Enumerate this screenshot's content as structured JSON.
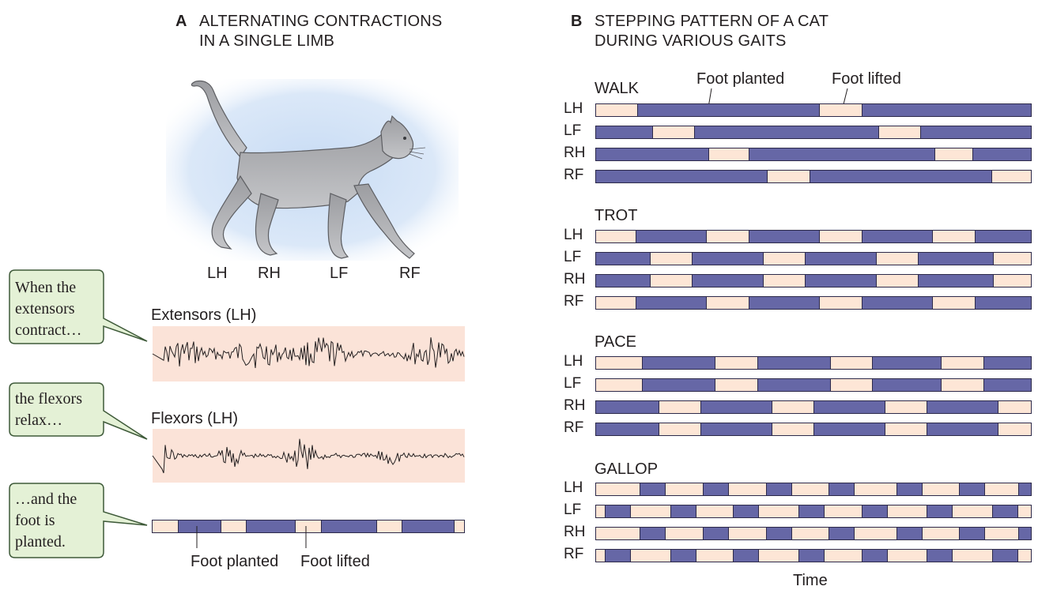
{
  "colors": {
    "planted": "#6667a6",
    "lifted": "#fde6d6",
    "emg_bg": "#fbe3d8",
    "callout_bg": "#e4f1d6",
    "callout_border": "#3e5a39",
    "cat_fur": "#a9aaae",
    "halo": "#cfe0f5"
  },
  "panelA": {
    "letter": "A",
    "title_line1": "ALTERNATING CONTRACTIONS",
    "title_line2": "IN A SINGLE LIMB",
    "limb_labels": [
      "LH",
      "RH",
      "LF",
      "RF"
    ],
    "extensors_label": "Extensors (LH)",
    "flexors_label": "Flexors (LH)",
    "planted_label": "Foot planted",
    "lifted_label": "Foot lifted",
    "step_bar": [
      {
        "state": "lifted",
        "from": 0.0,
        "to": 0.08
      },
      {
        "state": "planted",
        "from": 0.08,
        "to": 0.22
      },
      {
        "state": "lifted",
        "from": 0.22,
        "to": 0.3
      },
      {
        "state": "planted",
        "from": 0.3,
        "to": 0.46
      },
      {
        "state": "lifted",
        "from": 0.46,
        "to": 0.54
      },
      {
        "state": "planted",
        "from": 0.54,
        "to": 0.72
      },
      {
        "state": "lifted",
        "from": 0.72,
        "to": 0.8
      },
      {
        "state": "planted",
        "from": 0.8,
        "to": 0.97
      },
      {
        "state": "lifted",
        "from": 0.97,
        "to": 1.0
      }
    ]
  },
  "callouts": [
    {
      "lines": [
        "When the",
        "extensors",
        "contract…"
      ]
    },
    {
      "lines": [
        "the flexors",
        "relax…"
      ]
    },
    {
      "lines": [
        "…and the",
        "foot is",
        "planted."
      ]
    }
  ],
  "panelB": {
    "letter": "B",
    "title_line1": "STEPPING PATTERN OF A CAT",
    "title_line2": "DURING VARIOUS GAITS",
    "planted_label": "Foot planted",
    "lifted_label": "Foot lifted",
    "time_label": "Time",
    "gaits": [
      {
        "name": "WALK",
        "rows": [
          {
            "limb": "LH",
            "planted": [
              [
                0.095,
                0.515
              ],
              [
                0.61,
                1.0
              ]
            ]
          },
          {
            "limb": "LF",
            "planted": [
              [
                0.0,
                0.13
              ],
              [
                0.225,
                0.65
              ],
              [
                0.745,
                1.0
              ]
            ]
          },
          {
            "limb": "RH",
            "planted": [
              [
                0.0,
                0.26
              ],
              [
                0.35,
                0.78
              ],
              [
                0.865,
                1.0
              ]
            ]
          },
          {
            "limb": "RF",
            "planted": [
              [
                0.0,
                0.395
              ],
              [
                0.49,
                0.91
              ]
            ]
          }
        ]
      },
      {
        "name": "TROT",
        "rows": [
          {
            "limb": "LH",
            "planted": [
              [
                0.09,
                0.255
              ],
              [
                0.35,
                0.515
              ],
              [
                0.61,
                0.775
              ],
              [
                0.87,
                1.0
              ]
            ]
          },
          {
            "limb": "LF",
            "planted": [
              [
                0.0,
                0.125
              ],
              [
                0.22,
                0.385
              ],
              [
                0.48,
                0.645
              ],
              [
                0.74,
                0.915
              ]
            ]
          },
          {
            "limb": "RH",
            "planted": [
              [
                0.0,
                0.125
              ],
              [
                0.22,
                0.385
              ],
              [
                0.48,
                0.645
              ],
              [
                0.74,
                0.915
              ]
            ]
          },
          {
            "limb": "RF",
            "planted": [
              [
                0.09,
                0.255
              ],
              [
                0.35,
                0.515
              ],
              [
                0.61,
                0.775
              ],
              [
                0.87,
                1.0
              ]
            ]
          }
        ]
      },
      {
        "name": "PACE",
        "rows": [
          {
            "limb": "LH",
            "planted": [
              [
                0.105,
                0.275
              ],
              [
                0.37,
                0.54
              ],
              [
                0.635,
                0.795
              ],
              [
                0.89,
                1.0
              ]
            ]
          },
          {
            "limb": "LF",
            "planted": [
              [
                0.105,
                0.275
              ],
              [
                0.37,
                0.54
              ],
              [
                0.635,
                0.795
              ],
              [
                0.89,
                1.0
              ]
            ]
          },
          {
            "limb": "RH",
            "planted": [
              [
                0.0,
                0.145
              ],
              [
                0.24,
                0.405
              ],
              [
                0.5,
                0.665
              ],
              [
                0.76,
                0.925
              ]
            ]
          },
          {
            "limb": "RF",
            "planted": [
              [
                0.0,
                0.145
              ],
              [
                0.24,
                0.405
              ],
              [
                0.5,
                0.665
              ],
              [
                0.76,
                0.925
              ]
            ]
          }
        ]
      },
      {
        "name": "GALLOP",
        "rows": [
          {
            "limb": "LH",
            "planted": [
              [
                0.1,
                0.16
              ],
              [
                0.245,
                0.305
              ],
              [
                0.39,
                0.45
              ],
              [
                0.535,
                0.595
              ],
              [
                0.69,
                0.75
              ],
              [
                0.835,
                0.895
              ],
              [
                0.97,
                1.0
              ]
            ]
          },
          {
            "limb": "LF",
            "planted": [
              [
                0.02,
                0.08
              ],
              [
                0.17,
                0.23
              ],
              [
                0.315,
                0.375
              ],
              [
                0.465,
                0.525
              ],
              [
                0.61,
                0.67
              ],
              [
                0.76,
                0.82
              ],
              [
                0.91,
                0.97
              ]
            ]
          },
          {
            "limb": "RH",
            "planted": [
              [
                0.1,
                0.16
              ],
              [
                0.245,
                0.305
              ],
              [
                0.39,
                0.45
              ],
              [
                0.535,
                0.595
              ],
              [
                0.69,
                0.75
              ],
              [
                0.835,
                0.895
              ],
              [
                0.97,
                1.0
              ]
            ]
          },
          {
            "limb": "RF",
            "planted": [
              [
                0.02,
                0.08
              ],
              [
                0.17,
                0.23
              ],
              [
                0.315,
                0.375
              ],
              [
                0.465,
                0.525
              ],
              [
                0.61,
                0.67
              ],
              [
                0.76,
                0.82
              ],
              [
                0.91,
                0.97
              ]
            ]
          }
        ]
      }
    ]
  }
}
